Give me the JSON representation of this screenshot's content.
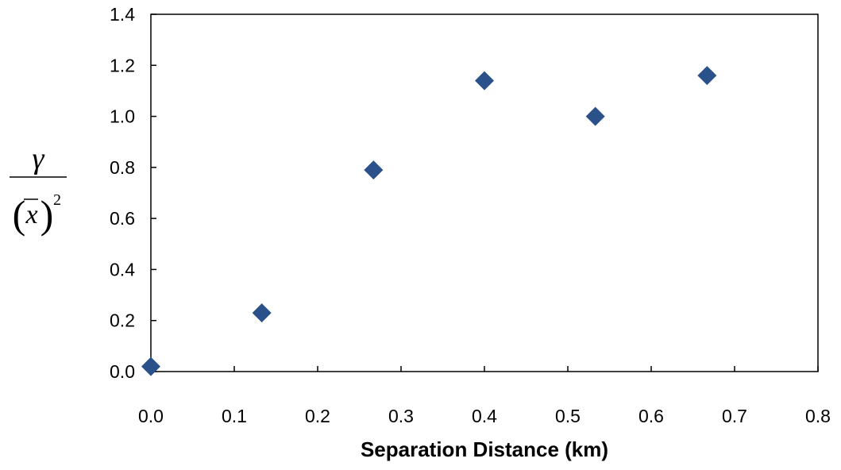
{
  "chart_data": {
    "type": "scatter",
    "title": "",
    "xlabel": "Separation Distance (km)",
    "ylabel": {
      "numerator": "γ",
      "denominator_var": "x",
      "exponent": "2"
    },
    "xlim": [
      0,
      0.8
    ],
    "ylim": [
      0,
      1.4
    ],
    "xticks": [
      "0.0",
      "0.1",
      "0.2",
      "0.3",
      "0.4",
      "0.5",
      "0.6",
      "0.7",
      "0.8"
    ],
    "yticks": [
      "0.0",
      "0.2",
      "0.4",
      "0.6",
      "0.8",
      "1.0",
      "1.2",
      "1.4"
    ],
    "grid": false,
    "marker": "diamond",
    "marker_color": "#2a5189",
    "series": [
      {
        "x": [
          0.0,
          0.133,
          0.267,
          0.4,
          0.533,
          0.667
        ],
        "y": [
          0.02,
          0.23,
          0.79,
          1.14,
          1.0,
          1.16
        ]
      }
    ]
  }
}
